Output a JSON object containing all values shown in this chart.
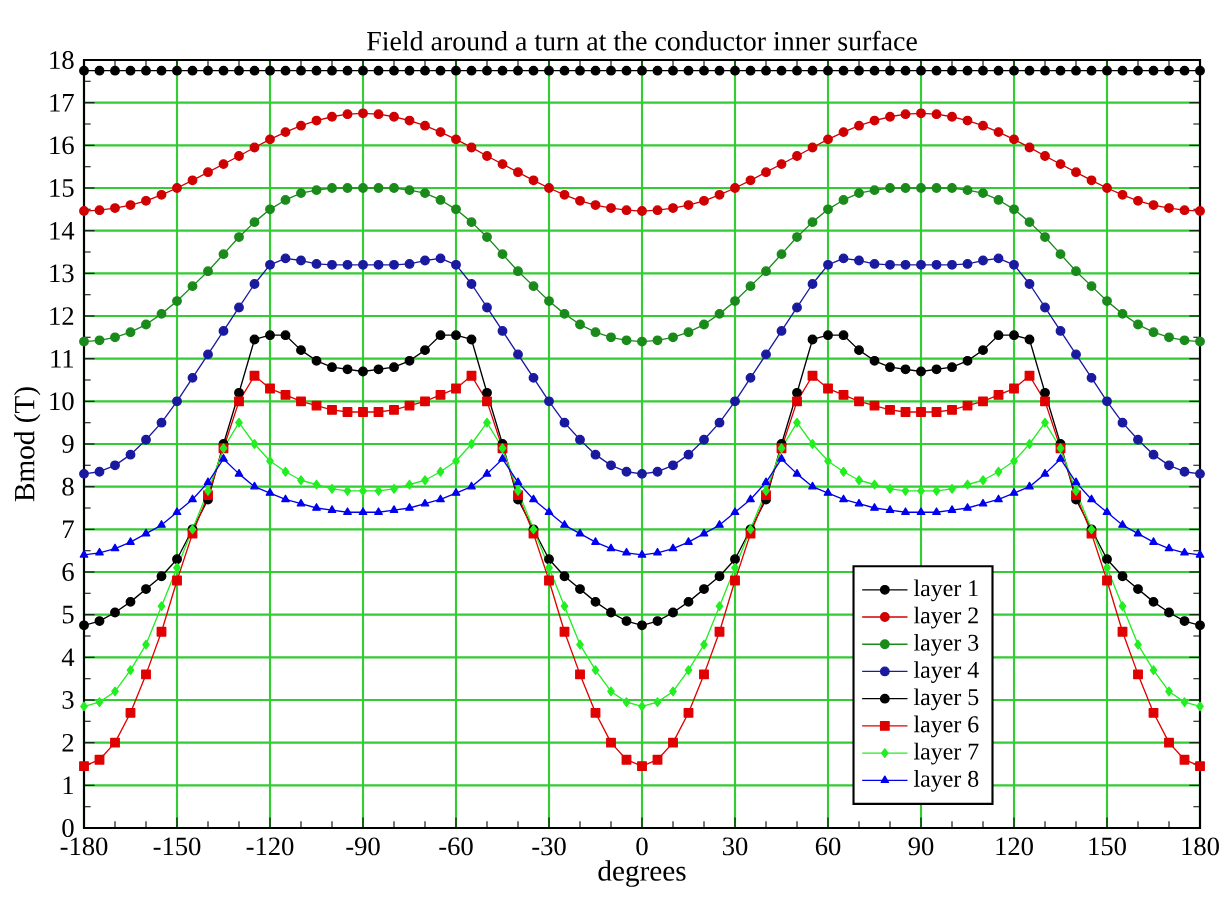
{
  "chart_data": {
    "type": "line",
    "title": "Field around a turn at the conductor inner surface",
    "xlabel": "degrees",
    "ylabel": "Bmod (T)",
    "x": [
      -180,
      -175,
      -170,
      -165,
      -160,
      -155,
      -150,
      -145,
      -140,
      -135,
      -130,
      -125,
      -120,
      -115,
      -110,
      -105,
      -100,
      -95,
      -90,
      -85,
      -80,
      -75,
      -70,
      -65,
      -60,
      -55,
      -50,
      -45,
      -40,
      -35,
      -30,
      -25,
      -20,
      -15,
      -10,
      -5,
      0,
      5,
      10,
      15,
      20,
      25,
      30,
      35,
      40,
      45,
      50,
      55,
      60,
      65,
      70,
      75,
      80,
      85,
      90,
      95,
      100,
      105,
      110,
      115,
      120,
      125,
      130,
      135,
      140,
      145,
      150,
      155,
      160,
      165,
      170,
      175,
      180
    ],
    "xlim": [
      -180,
      180
    ],
    "ylim": [
      0,
      18
    ],
    "xticks": [
      -180,
      -150,
      -120,
      -90,
      -60,
      -30,
      0,
      30,
      60,
      90,
      120,
      150,
      180
    ],
    "yticks": [
      0,
      1,
      2,
      3,
      4,
      5,
      6,
      7,
      8,
      9,
      10,
      11,
      12,
      13,
      14,
      15,
      16,
      17,
      18
    ],
    "grid": true,
    "legend": "bottom right",
    "series": [
      {
        "name": "layer 1",
        "color": "#000000",
        "marker": "circle",
        "values": [
          17.75,
          17.75,
          17.75,
          17.75,
          17.75,
          17.75,
          17.75,
          17.75,
          17.75,
          17.75,
          17.75,
          17.75,
          17.75,
          17.75,
          17.75,
          17.75,
          17.75,
          17.75,
          17.75,
          17.75,
          17.75,
          17.75,
          17.75,
          17.75,
          17.75,
          17.75,
          17.75,
          17.75,
          17.75,
          17.75,
          17.75,
          17.75,
          17.75,
          17.75,
          17.75,
          17.75,
          17.75,
          17.75,
          17.75,
          17.75,
          17.75,
          17.75,
          17.75,
          17.75,
          17.75,
          17.75,
          17.75,
          17.75,
          17.75,
          17.75,
          17.75,
          17.75,
          17.75,
          17.75,
          17.75,
          17.75,
          17.75,
          17.75,
          17.75,
          17.75,
          17.75,
          17.75,
          17.75,
          17.75,
          17.75,
          17.75,
          17.75,
          17.75,
          17.75,
          17.75,
          17.75,
          17.75,
          17.75
        ]
      },
      {
        "name": "layer 2",
        "color": "#d00000",
        "marker": "circle",
        "values": [
          14.46,
          14.48,
          14.53,
          14.6,
          14.7,
          14.84,
          15.0,
          15.18,
          15.37,
          15.56,
          15.75,
          15.95,
          16.14,
          16.31,
          16.46,
          16.58,
          16.67,
          16.73,
          16.75,
          16.73,
          16.67,
          16.58,
          16.46,
          16.31,
          16.14,
          15.95,
          15.75,
          15.56,
          15.37,
          15.18,
          15.0,
          14.84,
          14.7,
          14.6,
          14.53,
          14.48,
          14.46,
          14.48,
          14.53,
          14.6,
          14.7,
          14.84,
          15.0,
          15.18,
          15.37,
          15.56,
          15.75,
          15.95,
          16.14,
          16.31,
          16.46,
          16.58,
          16.67,
          16.73,
          16.75,
          16.73,
          16.67,
          16.58,
          16.46,
          16.31,
          16.14,
          15.95,
          15.75,
          15.56,
          15.37,
          15.18,
          15.0,
          14.84,
          14.7,
          14.6,
          14.53,
          14.48,
          14.46
        ]
      },
      {
        "name": "layer 3",
        "color": "#1a8a1a",
        "marker": "circle",
        "values": [
          11.4,
          11.43,
          11.5,
          11.62,
          11.8,
          12.05,
          12.35,
          12.7,
          13.05,
          13.45,
          13.85,
          14.2,
          14.5,
          14.72,
          14.88,
          14.95,
          15.0,
          15.0,
          15.0,
          15.0,
          15.0,
          14.95,
          14.88,
          14.72,
          14.5,
          14.2,
          13.85,
          13.45,
          13.05,
          12.7,
          12.35,
          12.05,
          11.8,
          11.62,
          11.5,
          11.43,
          11.4,
          11.43,
          11.5,
          11.62,
          11.8,
          12.05,
          12.35,
          12.7,
          13.05,
          13.45,
          13.85,
          14.2,
          14.5,
          14.72,
          14.88,
          14.95,
          15.0,
          15.0,
          15.0,
          15.0,
          15.0,
          14.95,
          14.88,
          14.72,
          14.5,
          14.2,
          13.85,
          13.45,
          13.05,
          12.7,
          12.35,
          12.05,
          11.8,
          11.62,
          11.5,
          11.43,
          11.4
        ]
      },
      {
        "name": "layer 4",
        "color": "#1a1aa0",
        "marker": "circle",
        "values": [
          8.3,
          8.35,
          8.5,
          8.75,
          9.1,
          9.5,
          10.0,
          10.55,
          11.1,
          11.65,
          12.2,
          12.75,
          13.2,
          13.35,
          13.3,
          13.22,
          13.2,
          13.2,
          13.2,
          13.2,
          13.2,
          13.22,
          13.3,
          13.35,
          13.2,
          12.75,
          12.2,
          11.65,
          11.1,
          10.55,
          10.0,
          9.5,
          9.1,
          8.75,
          8.5,
          8.35,
          8.3,
          8.35,
          8.5,
          8.75,
          9.1,
          9.5,
          10.0,
          10.55,
          11.1,
          11.65,
          12.2,
          12.75,
          13.2,
          13.35,
          13.3,
          13.22,
          13.2,
          13.2,
          13.2,
          13.2,
          13.2,
          13.22,
          13.3,
          13.35,
          13.2,
          12.75,
          12.2,
          11.65,
          11.1,
          10.55,
          10.0,
          9.5,
          9.1,
          8.75,
          8.5,
          8.35,
          8.3
        ]
      },
      {
        "name": "layer 5",
        "color": "#000000",
        "marker": "circle",
        "values": [
          4.75,
          4.85,
          5.05,
          5.3,
          5.6,
          5.9,
          6.3,
          7.0,
          7.7,
          9.0,
          10.2,
          11.45,
          11.55,
          11.55,
          11.2,
          10.95,
          10.8,
          10.75,
          10.7,
          10.75,
          10.8,
          10.95,
          11.2,
          11.55,
          11.55,
          11.45,
          10.2,
          9.0,
          7.7,
          7.0,
          6.3,
          5.9,
          5.6,
          5.3,
          5.05,
          4.85,
          4.75,
          4.85,
          5.05,
          5.3,
          5.6,
          5.9,
          6.3,
          7.0,
          7.7,
          9.0,
          10.2,
          11.45,
          11.55,
          11.55,
          11.2,
          10.95,
          10.8,
          10.75,
          10.7,
          10.75,
          10.8,
          10.95,
          11.2,
          11.55,
          11.55,
          11.45,
          10.2,
          9.0,
          7.7,
          7.0,
          6.3,
          5.9,
          5.6,
          5.3,
          5.05,
          4.85,
          4.75
        ]
      },
      {
        "name": "layer 6",
        "color": "#e00000",
        "marker": "square",
        "values": [
          1.45,
          1.6,
          2.0,
          2.7,
          3.6,
          4.6,
          5.8,
          6.9,
          7.8,
          8.9,
          10.0,
          10.6,
          10.3,
          10.15,
          10.0,
          9.9,
          9.8,
          9.75,
          9.75,
          9.75,
          9.8,
          9.9,
          10.0,
          10.15,
          10.3,
          10.6,
          10.0,
          8.9,
          7.8,
          6.9,
          5.8,
          4.6,
          3.6,
          2.7,
          2.0,
          1.6,
          1.45,
          1.6,
          2.0,
          2.7,
          3.6,
          4.6,
          5.8,
          6.9,
          7.8,
          8.9,
          10.0,
          10.6,
          10.3,
          10.15,
          10.0,
          9.9,
          9.8,
          9.75,
          9.75,
          9.75,
          9.8,
          9.9,
          10.0,
          10.15,
          10.3,
          10.6,
          10.0,
          8.9,
          7.8,
          6.9,
          5.8,
          4.6,
          3.6,
          2.7,
          2.0,
          1.6,
          1.45
        ]
      },
      {
        "name": "layer 7",
        "color": "#22ee22",
        "marker": "diamond",
        "values": [
          2.85,
          2.95,
          3.2,
          3.7,
          4.3,
          5.2,
          6.1,
          7.0,
          7.9,
          8.9,
          9.5,
          9.0,
          8.6,
          8.35,
          8.15,
          8.05,
          7.95,
          7.9,
          7.9,
          7.9,
          7.95,
          8.05,
          8.15,
          8.35,
          8.6,
          9.0,
          9.5,
          8.9,
          7.9,
          7.0,
          6.1,
          5.2,
          4.3,
          3.7,
          3.2,
          2.95,
          2.85,
          2.95,
          3.2,
          3.7,
          4.3,
          5.2,
          6.1,
          7.0,
          7.9,
          8.9,
          9.5,
          9.0,
          8.6,
          8.35,
          8.15,
          8.05,
          7.95,
          7.9,
          7.9,
          7.9,
          7.95,
          8.05,
          8.15,
          8.35,
          8.6,
          9.0,
          9.5,
          8.9,
          7.9,
          7.0,
          6.1,
          5.2,
          4.3,
          3.7,
          3.2,
          2.95,
          2.85
        ]
      },
      {
        "name": "layer 8",
        "color": "#0000ee",
        "marker": "triangle",
        "values": [
          6.4,
          6.45,
          6.55,
          6.7,
          6.9,
          7.1,
          7.4,
          7.7,
          8.1,
          8.65,
          8.3,
          8.0,
          7.85,
          7.7,
          7.6,
          7.5,
          7.45,
          7.4,
          7.4,
          7.4,
          7.45,
          7.5,
          7.6,
          7.7,
          7.85,
          8.0,
          8.3,
          8.65,
          8.1,
          7.7,
          7.4,
          7.1,
          6.9,
          6.7,
          6.55,
          6.45,
          6.4,
          6.45,
          6.55,
          6.7,
          6.9,
          7.1,
          7.4,
          7.7,
          8.1,
          8.65,
          8.3,
          8.0,
          7.85,
          7.7,
          7.6,
          7.5,
          7.45,
          7.4,
          7.4,
          7.4,
          7.45,
          7.5,
          7.6,
          7.7,
          7.85,
          8.0,
          8.3,
          8.65,
          8.1,
          7.7,
          7.4,
          7.1,
          6.9,
          6.7,
          6.55,
          6.45,
          6.4
        ]
      }
    ]
  }
}
